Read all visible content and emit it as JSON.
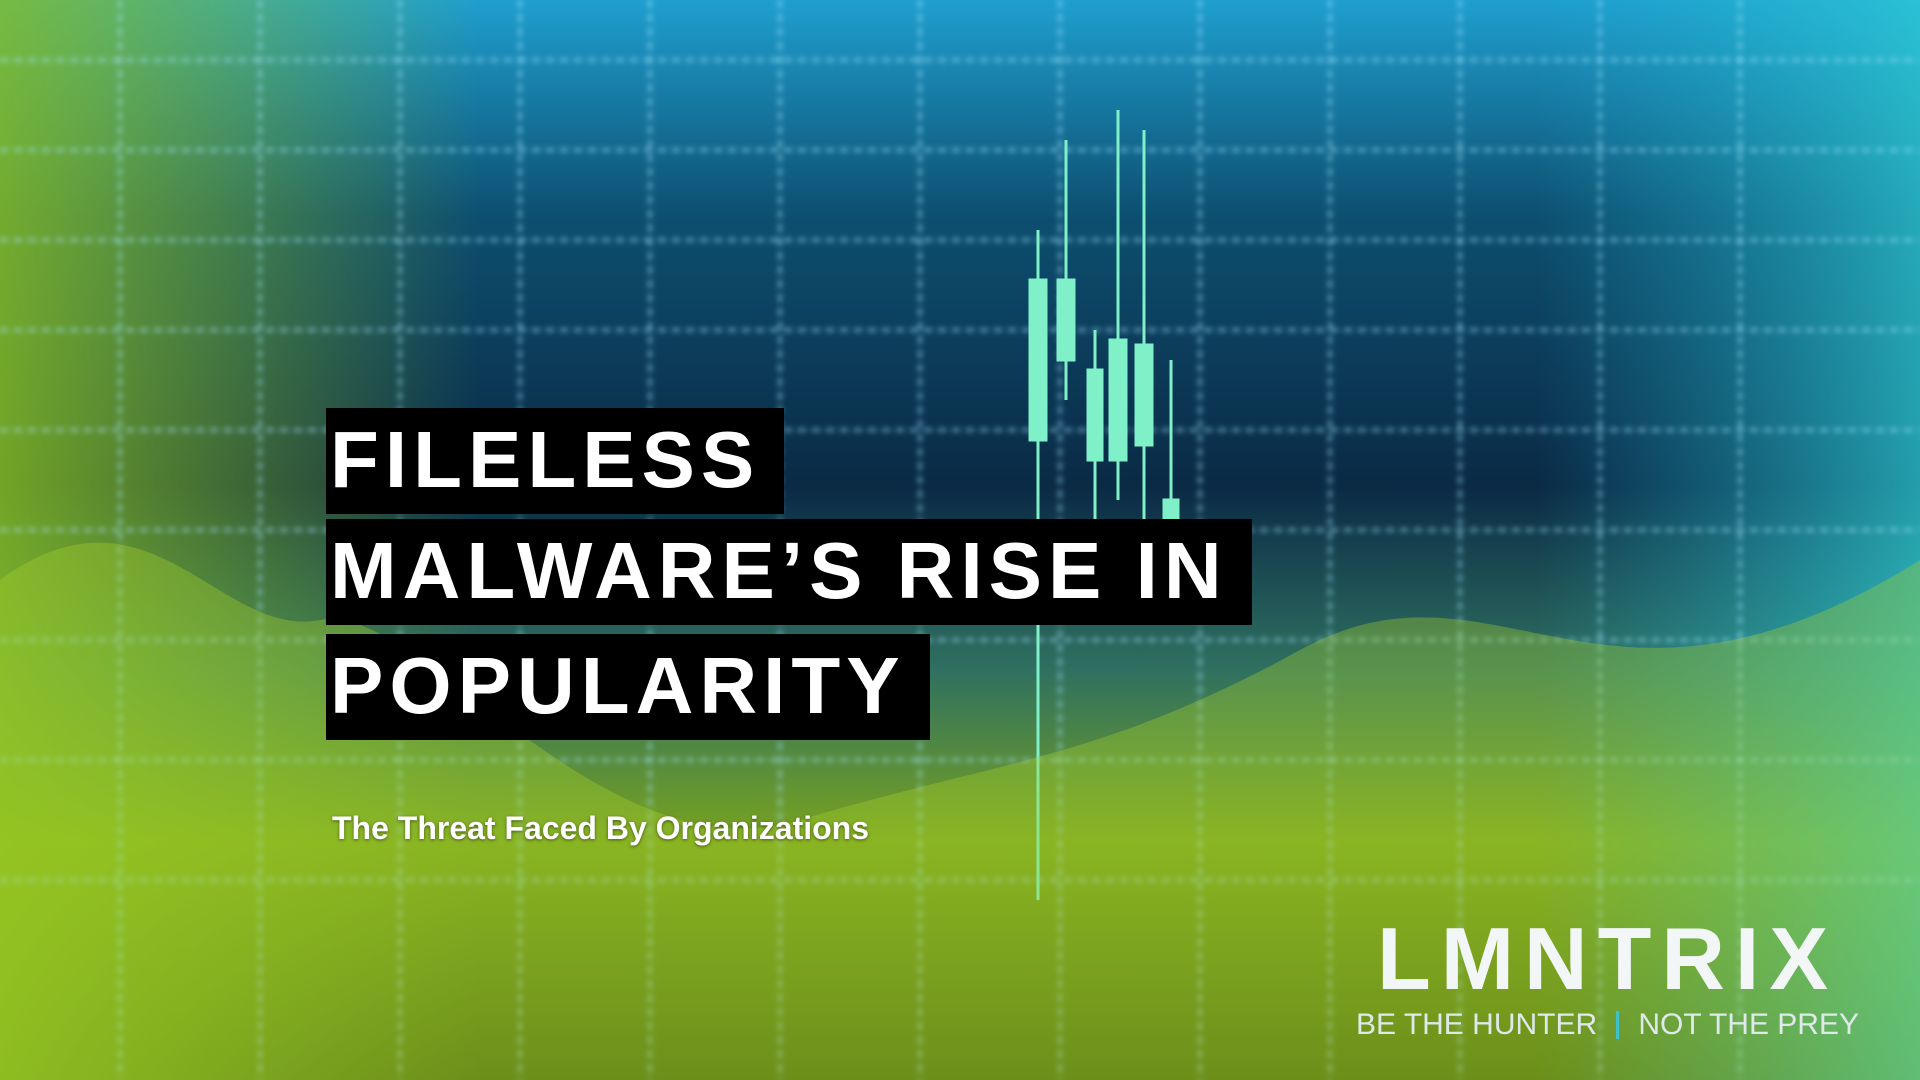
{
  "title": {
    "lines": [
      "FILELESS",
      "MALWARE’S RISE IN",
      "POPULARITY"
    ]
  },
  "subtitle": "The Threat Faced By Organizations",
  "logo": {
    "name": "LMNTRIX",
    "tagline": [
      "BE THE HUNTER",
      "NOT THE PREY"
    ]
  }
}
